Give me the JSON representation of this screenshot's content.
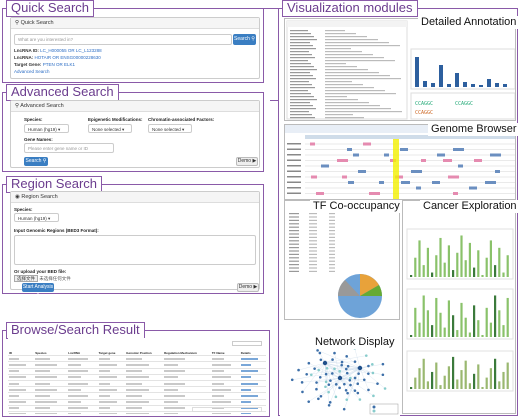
{
  "quick": {
    "section_title": "Quick Search",
    "panel_title": "Quick Search",
    "placeholder": "What are you interested in?",
    "search_label": "Search",
    "lines": [
      {
        "label": "LncRNA ID:",
        "value": "LC_H000055 OR LC_L123288"
      },
      {
        "label": "LncRNA:",
        "value": "HOTAIR OR ENSG00000228630"
      },
      {
        "label": "Target Gene:",
        "value": "PTEN OR ELK1"
      }
    ],
    "advanced_link": "Advanced Search"
  },
  "advanced": {
    "section_title": "Advanced Search",
    "panel_title": "Advanced Search",
    "species_label": "Species:",
    "species_value": "Human (hg19)",
    "epi_label": "Epigenetic Modifications:",
    "epi_value": "None selected",
    "chrom_label": "Chromatin-associated Factors:",
    "chrom_value": "None selected",
    "gene_label": "Gene Names:",
    "gene_placeholder": "Please enter gene name or ID",
    "search_label": "Search",
    "demo_label": "Demo"
  },
  "region": {
    "section_title": "Region Search",
    "panel_title": "Region Search",
    "species_label": "Species:",
    "species_value": "Human (hg19)",
    "input_label": "Input Genomic Regions (BED3 Format):",
    "upload_label": "Or upload your BED file:",
    "file_btn": "选择文件",
    "file_status": "未选择任何文件",
    "start_label": "Start Analysis",
    "demo_label": "Demo"
  },
  "browse": {
    "section_title": "Browse/Search Result",
    "columns": [
      "ID",
      "Species",
      "LncRNA",
      "Target gene",
      "Genomic Position",
      "Regulation Mechanism",
      "TF Name",
      "Details"
    ]
  },
  "viz": {
    "section_title": "Visualization modules",
    "detailed": "Detailed Annotation",
    "genome": "Genome Browser",
    "tf": "TF Co-occupancy",
    "cancer": "Cancer Exploration",
    "network": "Network Display"
  },
  "colors": {
    "frame": "#8a5aa8",
    "accent": "#3a7ec2",
    "title": "#6b3c8e"
  }
}
